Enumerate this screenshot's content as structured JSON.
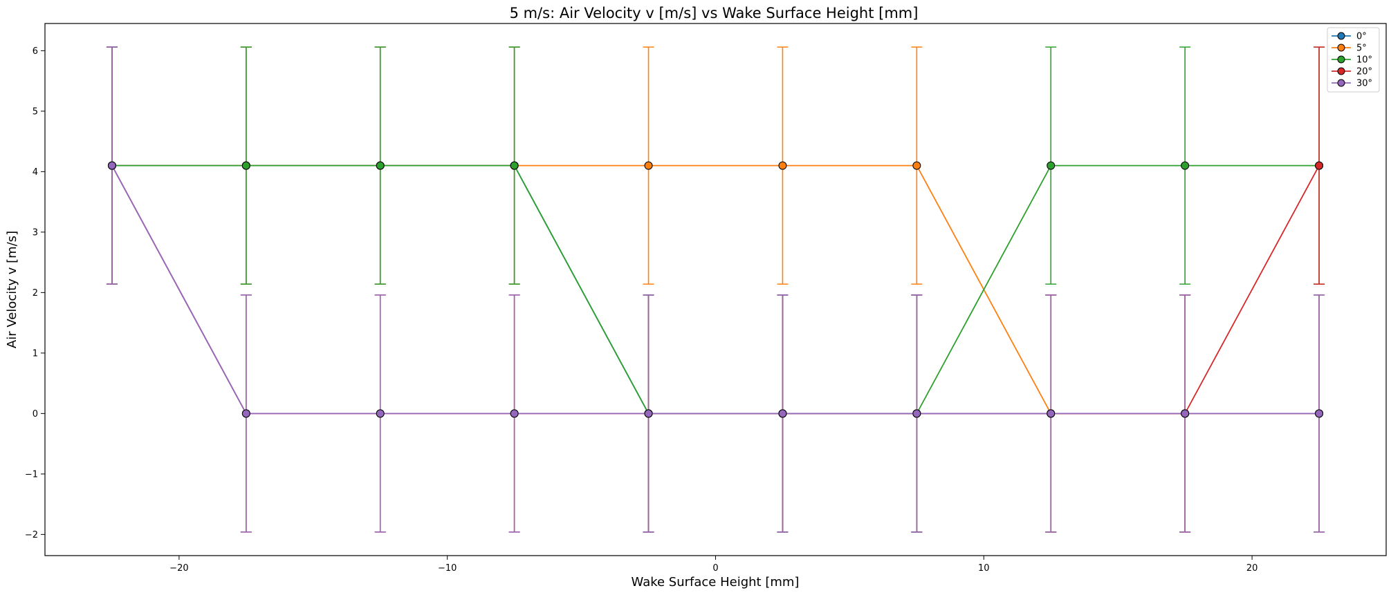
{
  "chart_data": {
    "type": "line",
    "title": "5 m/s: Air Velocity v [m/s] vs Wake Surface Height [mm]",
    "xlabel": "Wake Surface Height [mm]",
    "ylabel": "Air Velocity v [m/s]",
    "xlim": [
      -25.0,
      25.0
    ],
    "ylim": [
      -2.35,
      6.45
    ],
    "xticks": [
      -20,
      -10,
      0,
      10,
      20
    ],
    "xtick_labels": [
      "−20",
      "−10",
      "0",
      "10",
      "20"
    ],
    "yticks": [
      -2,
      -1,
      0,
      1,
      2,
      3,
      4,
      5,
      6
    ],
    "ytick_labels": [
      "−2",
      "−1",
      "0",
      "1",
      "2",
      "3",
      "4",
      "5",
      "6"
    ],
    "grid": false,
    "legend_position": "top-right",
    "x": [
      -22.5,
      -17.5,
      -12.5,
      -7.5,
      -2.5,
      2.5,
      7.5,
      12.5,
      17.5,
      22.5
    ],
    "error_bars": {
      "high_value_halfwidth": 1.96,
      "zero_value_halfwidth": 1.96
    },
    "series": [
      {
        "name": "0°",
        "color": "#1f77b4",
        "values": [
          4.1,
          4.1,
          4.1,
          4.1,
          0,
          0,
          0,
          0,
          0,
          0
        ]
      },
      {
        "name": "5°",
        "color": "#ff7f0e",
        "values": [
          4.1,
          4.1,
          4.1,
          4.1,
          4.1,
          4.1,
          4.1,
          0,
          0,
          0
        ]
      },
      {
        "name": "10°",
        "color": "#2ca02c",
        "values": [
          4.1,
          4.1,
          4.1,
          4.1,
          0,
          0,
          0,
          4.1,
          4.1,
          4.1
        ]
      },
      {
        "name": "20°",
        "color": "#d62728",
        "values": [
          4.1,
          0,
          0,
          0,
          0,
          0,
          0,
          0,
          0,
          4.1
        ]
      },
      {
        "name": "30°",
        "color": "#9467bd",
        "values": [
          4.1,
          0,
          0,
          0,
          0,
          0,
          0,
          0,
          0,
          0
        ]
      }
    ]
  }
}
